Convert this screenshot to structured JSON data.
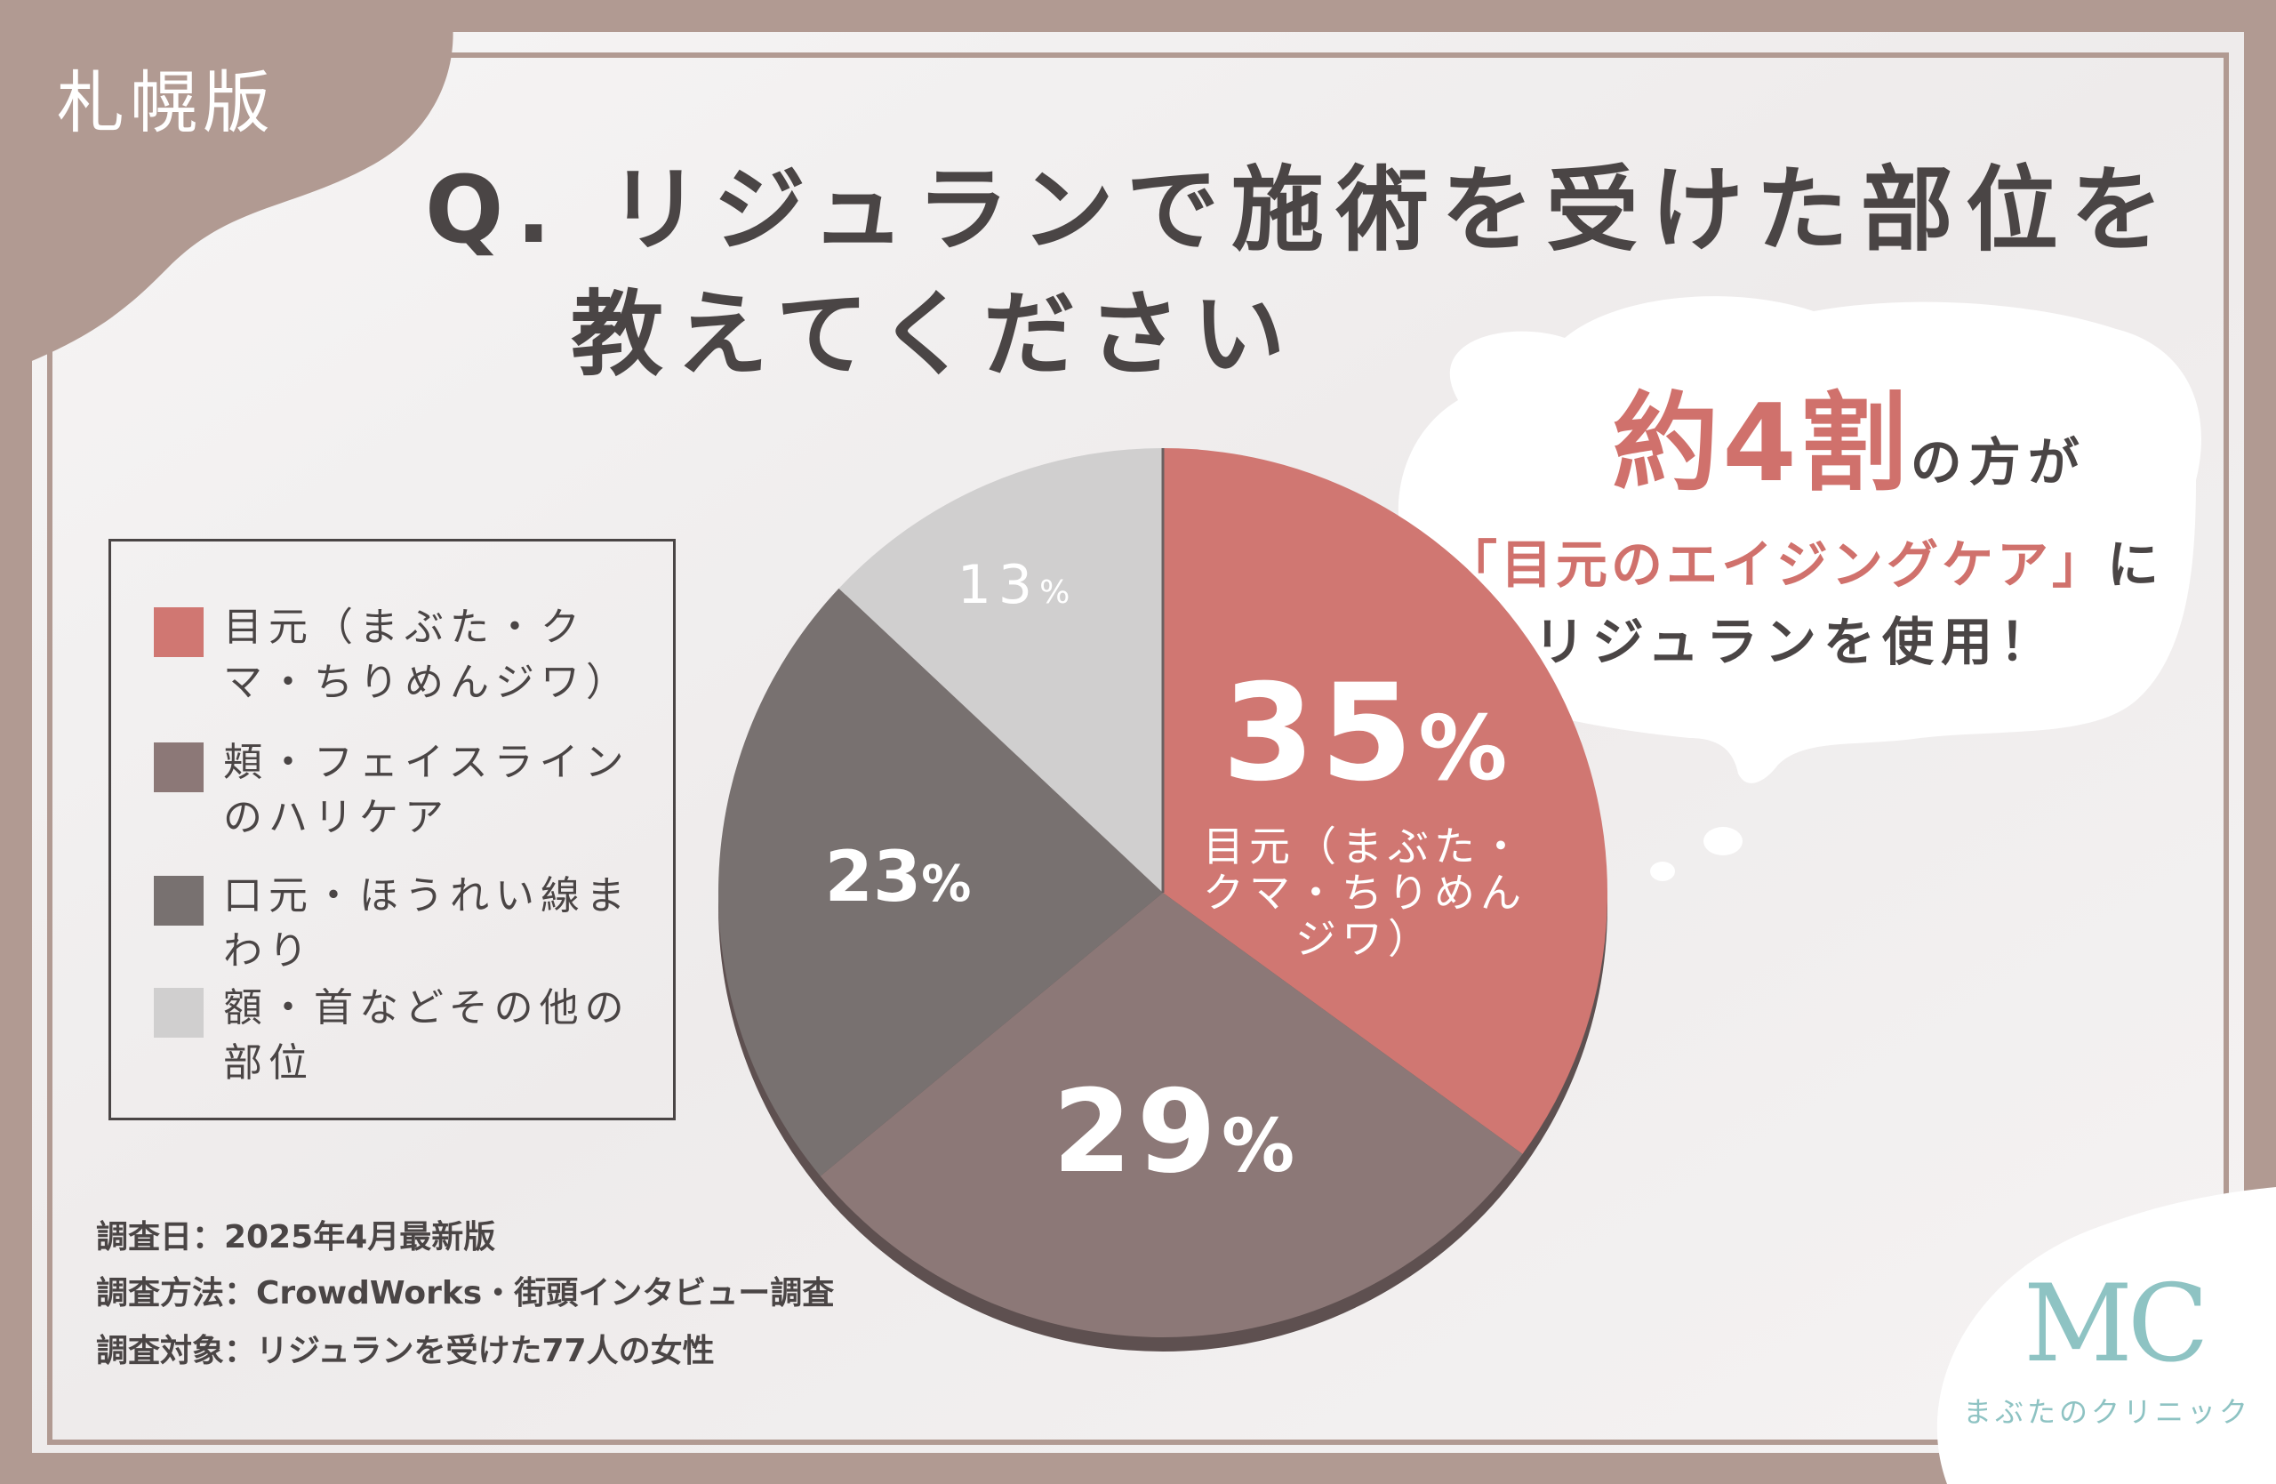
{
  "region_tag": "札幌版",
  "title_lines": [
    "Q. リジュランで施術を受けた部位を",
    "教えてください"
  ],
  "callout": {
    "highlight": "約4割",
    "line1_rest": "の方が",
    "quote": "「目元のエイジングケア」",
    "line2_rest": "に",
    "line3": "リジュランを使用！"
  },
  "legend": [
    {
      "label": "目元（まぶた・クマ・ちりめんジワ）"
    },
    {
      "label": "頬・フェイスラインのハリケア"
    },
    {
      "label": "口元・ほうれい線まわり"
    },
    {
      "label": "額・首などその他の部位"
    }
  ],
  "slice_labels": [
    {
      "value": "35",
      "unit": "%",
      "sub": [
        "目元（まぶた・",
        "クマ・ちりめん",
        "ジワ）"
      ]
    },
    {
      "value": "29",
      "unit": "%"
    },
    {
      "value": "23",
      "unit": "%"
    },
    {
      "value": "13",
      "unit": "%"
    }
  ],
  "notes": [
    "調査日：2025年4月最新版",
    "調査方法：CrowdWorks・街頭インタビュー調査",
    "調査対象：リジュランを受けた77人の女性"
  ],
  "brand": {
    "logo": "MC",
    "name": "まぶたのクリニック"
  },
  "colors": {
    "frame": "#b19a92",
    "panel": "#f4f2f2",
    "text": "#4a4545",
    "highlight": "#d0716c",
    "slice_eye": "#d07772",
    "slice_cheek": "#8c7877",
    "slice_mouth": "#787170",
    "slice_other": "#d0cfcf",
    "brand": "#8ec3c3"
  },
  "chart_data": {
    "type": "pie",
    "categories": [
      "目元（まぶた・クマ・ちりめんジワ）",
      "頬・フェイスラインのハリケア",
      "口元・ほうれい線まわり",
      "額・首などその他の部位"
    ],
    "values": [
      35,
      29,
      23,
      13
    ],
    "unit": "%",
    "legend_position": "left"
  }
}
